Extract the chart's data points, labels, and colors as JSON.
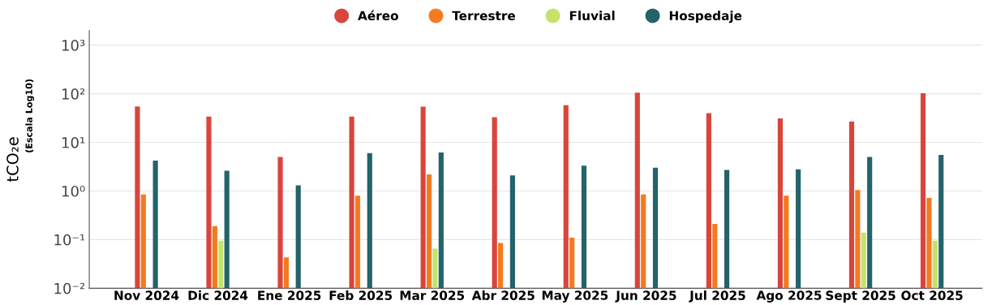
{
  "chart_data": {
    "type": "bar",
    "ylabel": "tCO₂e",
    "annotations": [
      "(Escala Log10)"
    ],
    "categories": [
      "Nov 2024",
      "Dic 2024",
      "Ene 2025",
      "Feb 2025",
      "Mar 2025",
      "Abr 2025",
      "May 2025",
      "Jun 2025",
      "Jul 2025",
      "Ago 2025",
      "Sept 2025",
      "Oct 2025"
    ],
    "series": [
      {
        "name": "Aéreo",
        "color": "#d9453b",
        "values": [
          55,
          34,
          5,
          34,
          54,
          33,
          58,
          105,
          40,
          31,
          27,
          102
        ]
      },
      {
        "name": "Terrestre",
        "color": "#f47a20",
        "values": [
          0.85,
          0.19,
          0.043,
          0.8,
          2.2,
          0.085,
          0.11,
          0.85,
          0.21,
          0.8,
          1.05,
          0.72
        ]
      },
      {
        "name": "Fluvial",
        "color": "#c5e36b",
        "values": [
          null,
          0.095,
          null,
          null,
          0.065,
          null,
          null,
          null,
          null,
          null,
          0.14,
          0.095
        ]
      },
      {
        "name": "Hospedaje",
        "color": "#23636a",
        "values": [
          4.2,
          2.6,
          1.3,
          6,
          6.2,
          2.1,
          3.3,
          3,
          2.7,
          2.8,
          5,
          5.5
        ]
      }
    ],
    "log": "y",
    "ylim": [
      0.01,
      2000
    ],
    "yticks": [
      {
        "value": 0.01,
        "label": "10⁻²"
      },
      {
        "value": 0.1,
        "label": "10⁻¹"
      },
      {
        "value": 1,
        "label": "10⁰"
      },
      {
        "value": 10,
        "label": "10¹"
      },
      {
        "value": 100,
        "label": "10²"
      },
      {
        "value": 1000,
        "label": "10³"
      }
    ],
    "grid": "y",
    "legend": "top",
    "marker": "circle"
  }
}
